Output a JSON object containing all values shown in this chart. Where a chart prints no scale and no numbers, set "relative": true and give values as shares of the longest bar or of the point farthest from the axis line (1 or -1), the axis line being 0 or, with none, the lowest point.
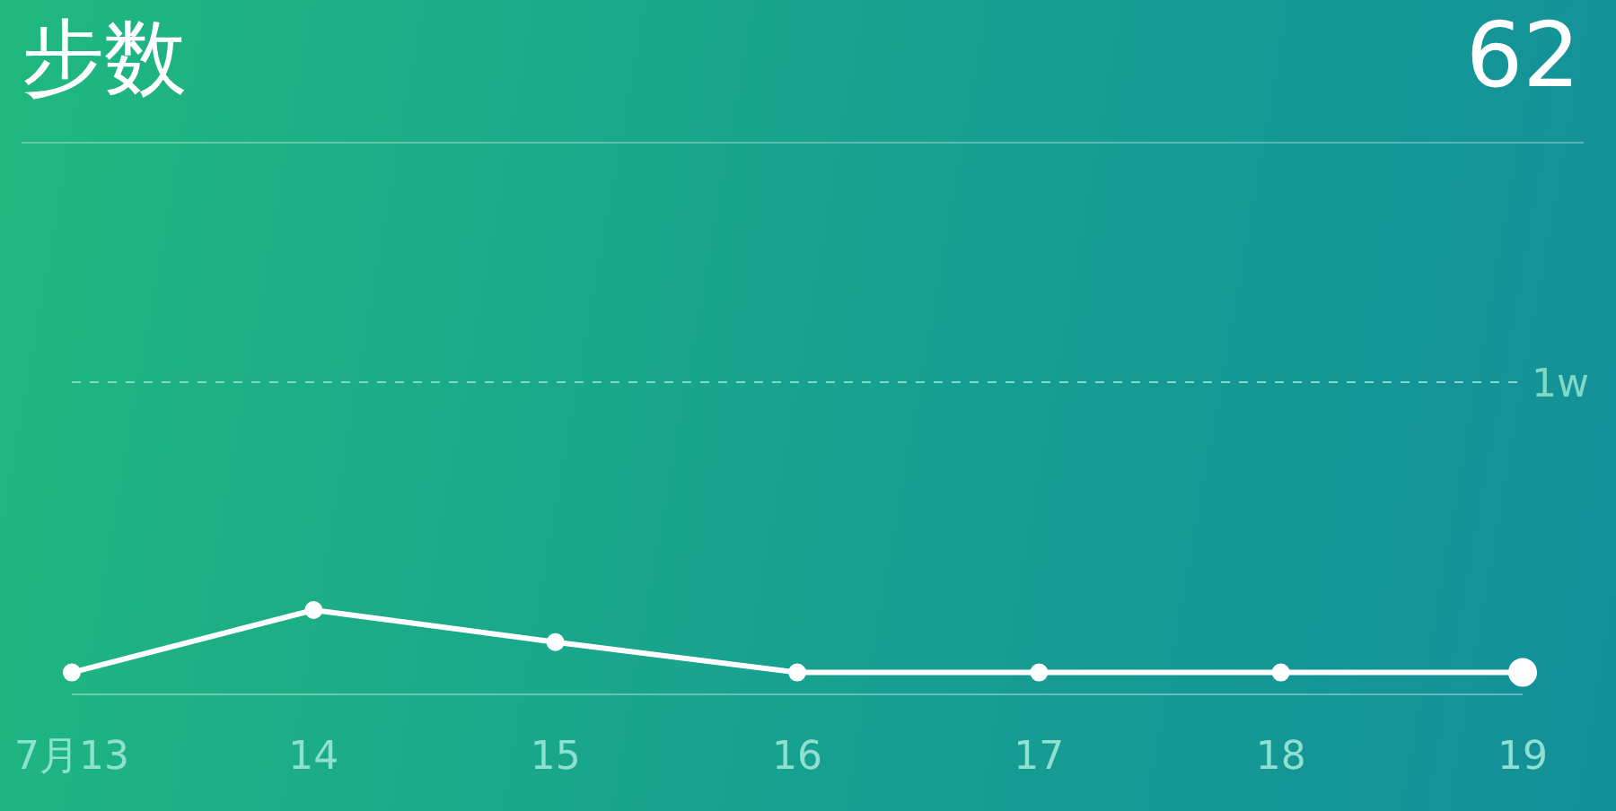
{
  "chart_data": {
    "type": "line",
    "title": "步数",
    "subtitle": "62",
    "relative": true,
    "categories": [
      "7月13",
      "14",
      "15",
      "16",
      "17",
      "18",
      "19"
    ],
    "series": [
      {
        "color": "#ffffff",
        "values": [
          0.26,
          1,
          0.62,
          0.26,
          0.26,
          0.26,
          0.26
        ]
      }
    ],
    "ref_lines": [
      {
        "axis": "y",
        "value": 3.7,
        "label": "1w",
        "color": "#7fd9c4",
        "line_style": "dashed"
      }
    ],
    "marker": "circle"
  }
}
